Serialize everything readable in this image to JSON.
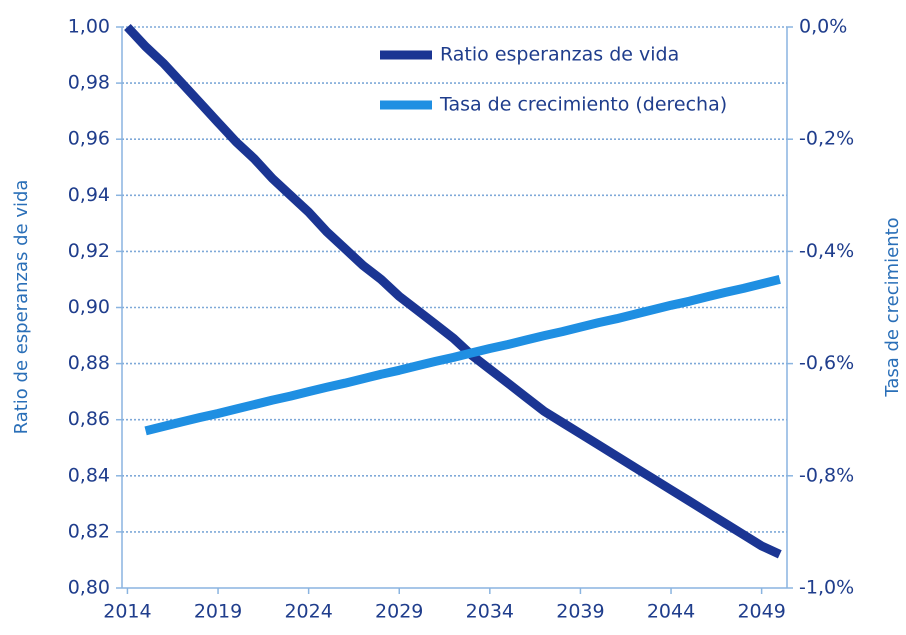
{
  "chart_data": {
    "type": "line",
    "x": [
      2014,
      2015,
      2016,
      2017,
      2018,
      2019,
      2020,
      2021,
      2022,
      2023,
      2024,
      2025,
      2026,
      2027,
      2028,
      2029,
      2030,
      2031,
      2032,
      2033,
      2034,
      2035,
      2036,
      2037,
      2038,
      2039,
      2040,
      2041,
      2042,
      2043,
      2044,
      2045,
      2046,
      2047,
      2048,
      2049,
      2050
    ],
    "series": [
      {
        "name": "Ratio esperanzas de vida",
        "color": "#1b3593",
        "values": [
          1.0,
          0.993,
          0.987,
          0.98,
          0.973,
          0.966,
          0.959,
          0.953,
          0.946,
          0.94,
          0.934,
          0.927,
          0.921,
          0.915,
          0.91,
          0.904,
          0.899,
          0.894,
          0.889,
          0.883,
          0.878,
          0.873,
          0.868,
          0.863,
          0.859,
          0.855,
          0.851,
          0.847,
          0.843,
          0.839,
          0.835,
          0.831,
          0.827,
          0.823,
          0.819,
          0.815,
          0.812
        ]
      },
      {
        "name": "Tasa de crecimiento (derecha)",
        "color": "#1f8fe2",
        "axis": "y2",
        "values": [
          null,
          -0.72,
          -0.712,
          -0.704,
          -0.696,
          -0.689,
          -0.681,
          -0.673,
          -0.665,
          -0.658,
          -0.65,
          -0.642,
          -0.635,
          -0.627,
          -0.619,
          -0.612,
          -0.604,
          -0.596,
          -0.589,
          -0.581,
          -0.573,
          -0.566,
          -0.558,
          -0.55,
          -0.543,
          -0.535,
          -0.527,
          -0.52,
          -0.512,
          -0.504,
          -0.496,
          -0.489,
          -0.481,
          -0.473,
          -0.466,
          -0.458,
          -0.45
        ]
      }
    ],
    "y_label": "Ratio de esperanzas de vida",
    "y2_label": "Tasa de crecimiento",
    "xlim": [
      2013.7,
      2050.4
    ],
    "xticks": [
      2014,
      2019,
      2024,
      2029,
      2034,
      2039,
      2044,
      2049
    ],
    "ylim": [
      0.8,
      1.0
    ],
    "yticks": [
      {
        "value": 0.8,
        "label": "0,80"
      },
      {
        "value": 0.82,
        "label": "0,82"
      },
      {
        "value": 0.84,
        "label": "0,84"
      },
      {
        "value": 0.86,
        "label": "0,86"
      },
      {
        "value": 0.88,
        "label": "0,88"
      },
      {
        "value": 0.9,
        "label": "0,90"
      },
      {
        "value": 0.92,
        "label": "0,92"
      },
      {
        "value": 0.94,
        "label": "0,94"
      },
      {
        "value": 0.96,
        "label": "0,96"
      },
      {
        "value": 0.98,
        "label": "0,98"
      },
      {
        "value": 1.0,
        "label": "1,00"
      }
    ],
    "y2lim": [
      -1.0,
      0
    ],
    "y2ticks": [
      {
        "value": -1.0,
        "label": "-1,0%"
      },
      {
        "value": -0.8,
        "label": "-0,8%"
      },
      {
        "value": -0.6,
        "label": "-0,6%"
      },
      {
        "value": -0.4,
        "label": "-0,4%"
      },
      {
        "value": -0.2,
        "label": "-0,2%"
      },
      {
        "value": 0,
        "label": "0,0%"
      }
    ],
    "grid": true,
    "legend": "top"
  }
}
